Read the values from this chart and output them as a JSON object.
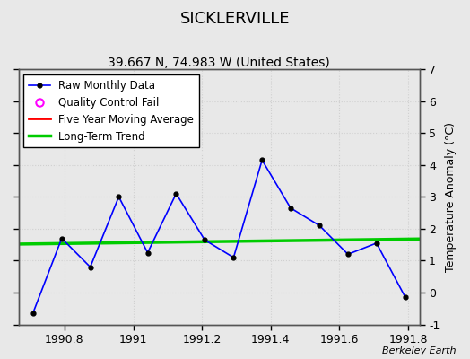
{
  "title": "SICKLERVILLE",
  "subtitle": "39.667 N, 74.983 W (United States)",
  "ylabel_right": "Temperature Anomaly (°C)",
  "watermark": "Berkeley Earth",
  "xlim": [
    1990.666,
    1991.833
  ],
  "ylim": [
    -1,
    7
  ],
  "yticks": [
    -1,
    0,
    1,
    2,
    3,
    4,
    5,
    6,
    7
  ],
  "xticks": [
    1990.8,
    1991.0,
    1991.2,
    1991.4,
    1991.6,
    1991.8
  ],
  "xticklabels": [
    "1990.8",
    "1991",
    "1991.2",
    "1991.4",
    "1991.6",
    "1991.8"
  ],
  "raw_x": [
    1990.708,
    1990.792,
    1990.875,
    1990.958,
    1991.042,
    1991.125,
    1991.208,
    1991.292,
    1991.375,
    1991.458,
    1991.542,
    1991.625,
    1991.708,
    1991.792
  ],
  "raw_y": [
    -0.65,
    1.7,
    0.8,
    3.0,
    1.25,
    3.1,
    1.65,
    1.1,
    4.15,
    2.65,
    2.1,
    1.2,
    1.55,
    -0.15
  ],
  "trend_x": [
    1990.666,
    1991.833
  ],
  "trend_y": [
    1.52,
    1.68
  ],
  "bg_color": "#e8e8e8",
  "plot_bg_color": "#e8e8e8",
  "raw_line_color": "#0000ff",
  "raw_marker_color": "#000000",
  "trend_color": "#00cc00",
  "moving_avg_color": "#ff0000",
  "qc_fail_color": "#ff00ff",
  "title_fontsize": 13,
  "subtitle_fontsize": 10,
  "legend_fontsize": 8.5,
  "axis_fontsize": 9,
  "grid_color": "#d0d0d0",
  "grid_linewidth": 0.8,
  "watermark_fontsize": 8
}
